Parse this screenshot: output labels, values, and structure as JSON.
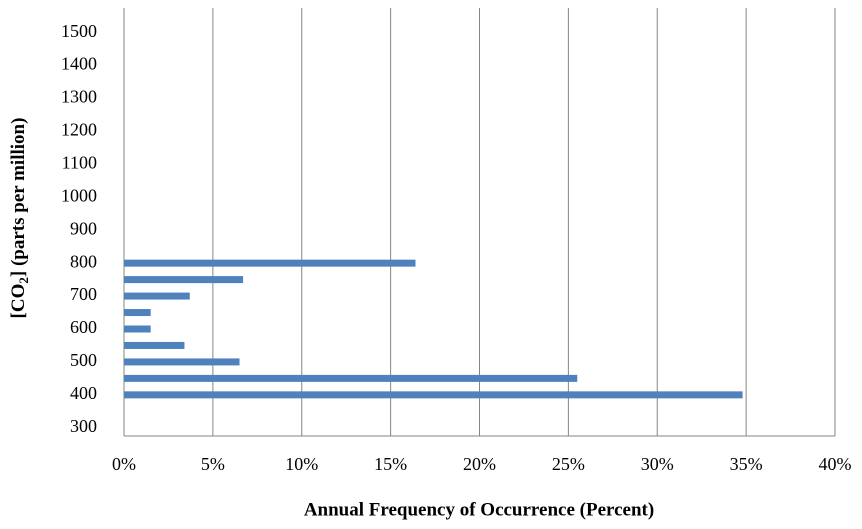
{
  "chart_data": {
    "type": "barh",
    "x_label": "Annual Frequency of Occurrence (Percent)",
    "y_label": [
      "[CO",
      "2",
      "] (parts per million)"
    ],
    "categories": [
      "300",
      null,
      "400",
      null,
      "500",
      null,
      "600",
      null,
      "700",
      null,
      "800",
      null,
      "900",
      null,
      "1000",
      null,
      "1100",
      null,
      "1200",
      null,
      "1300",
      null,
      "1400",
      null,
      "1500",
      null
    ],
    "values": [
      0,
      0,
      34.8,
      25.5,
      6.5,
      3.4,
      1.5,
      1.5,
      3.7,
      6.7,
      16.4,
      0,
      0,
      0,
      0,
      0,
      0,
      0,
      0,
      0,
      0,
      0,
      0,
      0,
      0,
      0
    ],
    "color": "#4f81bd",
    "xlim": [
      0,
      40
    ],
    "xticks": [
      {
        "value": 0,
        "label": "0%"
      },
      {
        "value": 5,
        "label": "5%"
      },
      {
        "value": 10,
        "label": "10%"
      },
      {
        "value": 15,
        "label": "15%"
      },
      {
        "value": 20,
        "label": "20%"
      },
      {
        "value": 25,
        "label": "25%"
      },
      {
        "value": 30,
        "label": "30%"
      },
      {
        "value": 35,
        "label": "35%"
      },
      {
        "value": 40,
        "label": "40%"
      }
    ],
    "grid": true
  }
}
